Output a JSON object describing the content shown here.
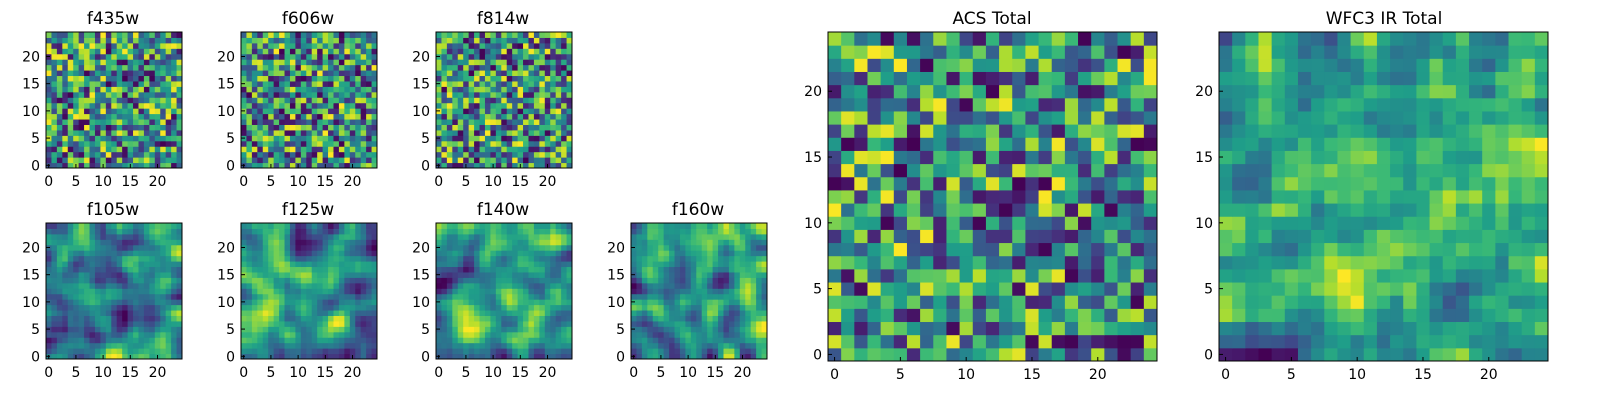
{
  "figure": {
    "colormap": "viridis",
    "colors": {
      "low": "#440154",
      "mid": "#21918c",
      "high": "#fde725",
      "frame": "#000000",
      "background": "#ffffff"
    }
  },
  "chart_data": [
    {
      "type": "heatmap",
      "title": "f435w",
      "grid_size": 25,
      "xticks": [
        0,
        5,
        10,
        15,
        20
      ],
      "yticks": [
        0,
        5,
        10,
        15,
        20
      ],
      "xlim": [
        -0.5,
        24.5
      ],
      "ylim": [
        -0.5,
        24.5
      ],
      "seed": 11,
      "smooth": 0,
      "grid": false
    },
    {
      "type": "heatmap",
      "title": "f606w",
      "grid_size": 25,
      "xticks": [
        0,
        5,
        10,
        15,
        20
      ],
      "yticks": [
        0,
        5,
        10,
        15,
        20
      ],
      "xlim": [
        -0.5,
        24.5
      ],
      "ylim": [
        -0.5,
        24.5
      ],
      "seed": 23,
      "smooth": 0,
      "grid": false
    },
    {
      "type": "heatmap",
      "title": "f814w",
      "grid_size": 25,
      "xticks": [
        0,
        5,
        10,
        15,
        20
      ],
      "yticks": [
        0,
        5,
        10,
        15,
        20
      ],
      "xlim": [
        -0.5,
        24.5
      ],
      "ylim": [
        -0.5,
        24.5
      ],
      "seed": 37,
      "smooth": 0,
      "grid": false
    },
    {
      "type": "heatmap",
      "title": "f105w",
      "grid_size": 25,
      "xticks": [
        0,
        5,
        10,
        15,
        20
      ],
      "yticks": [
        0,
        5,
        10,
        15,
        20
      ],
      "xlim": [
        -0.5,
        24.5
      ],
      "ylim": [
        -0.5,
        24.5
      ],
      "seed": 41,
      "smooth": 2,
      "grid": false
    },
    {
      "type": "heatmap",
      "title": "f125w",
      "grid_size": 25,
      "xticks": [
        0,
        5,
        10,
        15,
        20
      ],
      "yticks": [
        0,
        5,
        10,
        15,
        20
      ],
      "xlim": [
        -0.5,
        24.5
      ],
      "ylim": [
        -0.5,
        24.5
      ],
      "seed": 53,
      "smooth": 2,
      "grid": false
    },
    {
      "type": "heatmap",
      "title": "f140w",
      "grid_size": 25,
      "xticks": [
        0,
        5,
        10,
        15,
        20
      ],
      "yticks": [
        0,
        5,
        10,
        15,
        20
      ],
      "xlim": [
        -0.5,
        24.5
      ],
      "ylim": [
        -0.5,
        24.5
      ],
      "seed": 67,
      "smooth": 2,
      "grid": false
    },
    {
      "type": "heatmap",
      "title": "f160w",
      "grid_size": 25,
      "xticks": [
        0,
        5,
        10,
        15,
        20
      ],
      "yticks": [
        0,
        5,
        10,
        15,
        20
      ],
      "xlim": [
        -0.5,
        24.5
      ],
      "ylim": [
        -0.5,
        24.5
      ],
      "seed": 79,
      "smooth": 2,
      "grid": false
    },
    {
      "type": "heatmap",
      "title": "ACS Total",
      "grid_size": 25,
      "xticks": [
        0,
        5,
        10,
        15,
        20
      ],
      "yticks": [
        0,
        5,
        10,
        15,
        20
      ],
      "xlim": [
        -0.5,
        24.5
      ],
      "ylim": [
        -0.5,
        24.5
      ],
      "seed": 83,
      "smooth": 0,
      "grid": false
    },
    {
      "type": "heatmap",
      "title": "WFC3 IR Total",
      "grid_size": 25,
      "xticks": [
        0,
        5,
        10,
        15,
        20
      ],
      "yticks": [
        0,
        5,
        10,
        15,
        20
      ],
      "xlim": [
        -0.5,
        24.5
      ],
      "ylim": [
        -0.5,
        24.5
      ],
      "seed": 97,
      "smooth": 1,
      "grid": false
    }
  ]
}
